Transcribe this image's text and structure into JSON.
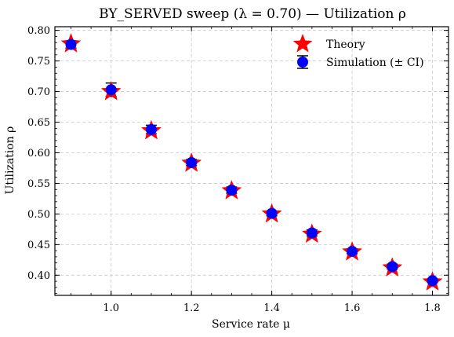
{
  "chart_data": {
    "type": "scatter",
    "title": "BY_SERVED sweep (λ = 0.70) — Utilization ρ",
    "xlabel": "Service rate μ",
    "ylabel": "Utilization ρ",
    "xlim": [
      0.86,
      1.84
    ],
    "ylim": [
      0.367,
      0.806
    ],
    "xticks": [
      1.0,
      1.2,
      1.4,
      1.6,
      1.8
    ],
    "yticks": [
      0.4,
      0.45,
      0.5,
      0.55,
      0.6,
      0.65,
      0.7,
      0.75,
      0.8
    ],
    "grid": true,
    "legend_position": "top-right",
    "colors": {
      "theory": "#ff0000",
      "simulation": "#0000ff",
      "errorbar": "#000000"
    },
    "series": [
      {
        "name": "Theory",
        "marker": "star",
        "x": [
          0.9,
          1.0,
          1.1,
          1.2,
          1.3,
          1.4,
          1.5,
          1.6,
          1.7,
          1.8
        ],
        "y": [
          0.778,
          0.7,
          0.636,
          0.583,
          0.538,
          0.5,
          0.467,
          0.438,
          0.412,
          0.389
        ]
      },
      {
        "name": "Simulation (± CI)",
        "marker": "circle",
        "x": [
          0.9,
          1.0,
          1.1,
          1.2,
          1.3,
          1.4,
          1.5,
          1.6,
          1.7,
          1.8
        ],
        "y": [
          0.777,
          0.703,
          0.638,
          0.584,
          0.539,
          0.501,
          0.469,
          0.439,
          0.414,
          0.391
        ],
        "ci": [
          0.006,
          0.011,
          0.007,
          0.005,
          0.005,
          0.004,
          0.005,
          0.004,
          0.004,
          0.003
        ]
      }
    ]
  }
}
